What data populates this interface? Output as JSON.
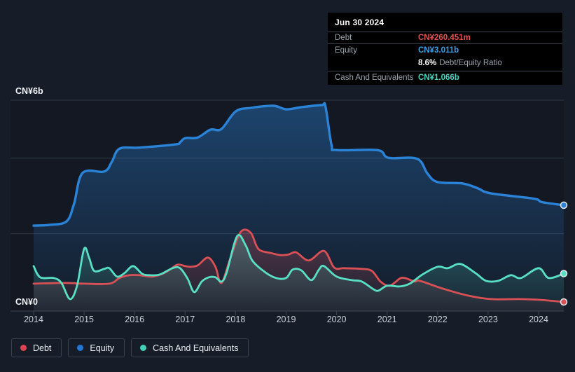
{
  "tooltip": {
    "date": "Jun 30 2024",
    "debt_label": "Debt",
    "debt_value": "CN¥260.451m",
    "equity_label": "Equity",
    "equity_value": "CN¥3.011b",
    "ratio_value": "8.6%",
    "ratio_label": "Debt/Equity Ratio",
    "cash_label": "Cash And Equivalents",
    "cash_value": "CN¥1.066b",
    "colors": {
      "debt": "#e4504b",
      "equity": "#38a1ea",
      "cash": "#46d4c0"
    }
  },
  "axis": {
    "y_max_label": "CN¥6b",
    "y_min_label": "CN¥0",
    "year_labels": [
      "2014",
      "2015",
      "2016",
      "2017",
      "2018",
      "2019",
      "2020",
      "2021",
      "2022",
      "2023",
      "2024"
    ]
  },
  "legend": {
    "items": [
      {
        "label": "Debt",
        "color": "#e0434f"
      },
      {
        "label": "Equity",
        "color": "#2079d8"
      },
      {
        "label": "Cash And Equivalents",
        "color": "#43d1b9"
      }
    ]
  },
  "chart_data": {
    "type": "area",
    "title": "Debt, Equity and Cash history",
    "x_unit": "year",
    "x_range": [
      2014,
      2024.5
    ],
    "ylim_b": [
      0,
      6
    ],
    "gridlines_b": [
      6,
      4.35,
      2.2,
      0
    ],
    "grid": true,
    "legend_position": "bottom",
    "series": [
      {
        "name": "Equity",
        "color": "#2b83d8",
        "points": [
          [
            2014.0,
            2.43
          ],
          [
            2014.3,
            2.45
          ],
          [
            2014.65,
            2.55
          ],
          [
            2014.8,
            3.05
          ],
          [
            2014.97,
            3.93
          ],
          [
            2015.4,
            3.97
          ],
          [
            2015.55,
            4.25
          ],
          [
            2015.7,
            4.62
          ],
          [
            2016.1,
            4.65
          ],
          [
            2016.8,
            4.74
          ],
          [
            2016.9,
            4.8
          ],
          [
            2017.0,
            4.92
          ],
          [
            2017.25,
            4.94
          ],
          [
            2017.5,
            5.16
          ],
          [
            2017.72,
            5.18
          ],
          [
            2018.0,
            5.68
          ],
          [
            2018.3,
            5.78
          ],
          [
            2018.75,
            5.84
          ],
          [
            2019.0,
            5.74
          ],
          [
            2019.3,
            5.8
          ],
          [
            2019.7,
            5.86
          ],
          [
            2019.78,
            5.82
          ],
          [
            2019.9,
            4.72
          ],
          [
            2020.0,
            4.58
          ],
          [
            2020.8,
            4.58
          ],
          [
            2020.97,
            4.4
          ],
          [
            2021.1,
            4.35
          ],
          [
            2021.6,
            4.33
          ],
          [
            2021.8,
            3.91
          ],
          [
            2022.0,
            3.67
          ],
          [
            2022.5,
            3.63
          ],
          [
            2022.8,
            3.49
          ],
          [
            2023.05,
            3.35
          ],
          [
            2023.9,
            3.2
          ],
          [
            2024.07,
            3.1
          ],
          [
            2024.5,
            3.011
          ]
        ]
      },
      {
        "name": "Debt",
        "color": "#d95055",
        "points": [
          [
            2014.0,
            0.78
          ],
          [
            2014.6,
            0.8
          ],
          [
            2015.0,
            0.78
          ],
          [
            2015.5,
            0.78
          ],
          [
            2015.7,
            0.94
          ],
          [
            2015.9,
            1.02
          ],
          [
            2016.1,
            1.02
          ],
          [
            2016.35,
            0.98
          ],
          [
            2016.55,
            1.06
          ],
          [
            2016.7,
            1.18
          ],
          [
            2016.85,
            1.32
          ],
          [
            2017.0,
            1.28
          ],
          [
            2017.1,
            1.26
          ],
          [
            2017.25,
            1.3
          ],
          [
            2017.45,
            1.52
          ],
          [
            2017.6,
            1.26
          ],
          [
            2017.72,
            0.8
          ],
          [
            2017.9,
            1.52
          ],
          [
            2018.1,
            2.25
          ],
          [
            2018.3,
            2.23
          ],
          [
            2018.45,
            1.77
          ],
          [
            2018.7,
            1.65
          ],
          [
            2018.9,
            1.59
          ],
          [
            2019.05,
            1.61
          ],
          [
            2019.2,
            1.67
          ],
          [
            2019.45,
            1.44
          ],
          [
            2019.75,
            1.71
          ],
          [
            2019.95,
            1.24
          ],
          [
            2020.15,
            1.22
          ],
          [
            2020.5,
            1.2
          ],
          [
            2020.7,
            1.14
          ],
          [
            2020.87,
            0.84
          ],
          [
            2021.05,
            0.72
          ],
          [
            2021.25,
            0.92
          ],
          [
            2021.35,
            0.94
          ],
          [
            2021.55,
            0.84
          ],
          [
            2021.65,
            0.86
          ],
          [
            2022.1,
            0.64
          ],
          [
            2022.6,
            0.44
          ],
          [
            2023.05,
            0.34
          ],
          [
            2023.6,
            0.34
          ],
          [
            2024.0,
            0.32
          ],
          [
            2024.5,
            0.26
          ]
        ]
      },
      {
        "name": "Cash And Equivalents",
        "color": "#58e0c5",
        "points": [
          [
            2014.0,
            1.28
          ],
          [
            2014.13,
            0.96
          ],
          [
            2014.4,
            0.94
          ],
          [
            2014.55,
            0.8
          ],
          [
            2014.72,
            0.34
          ],
          [
            2014.86,
            0.72
          ],
          [
            2015.0,
            1.77
          ],
          [
            2015.1,
            1.51
          ],
          [
            2015.2,
            1.14
          ],
          [
            2015.4,
            1.2
          ],
          [
            2015.5,
            1.22
          ],
          [
            2015.65,
            0.98
          ],
          [
            2015.8,
            1.08
          ],
          [
            2015.97,
            1.28
          ],
          [
            2016.15,
            1.06
          ],
          [
            2016.3,
            1.02
          ],
          [
            2016.5,
            1.04
          ],
          [
            2016.75,
            1.22
          ],
          [
            2016.9,
            1.22
          ],
          [
            2017.05,
            0.92
          ],
          [
            2017.18,
            0.54
          ],
          [
            2017.33,
            0.84
          ],
          [
            2017.47,
            0.96
          ],
          [
            2017.6,
            0.96
          ],
          [
            2017.72,
            0.84
          ],
          [
            2017.82,
            1.08
          ],
          [
            2018.03,
            2.13
          ],
          [
            2018.2,
            1.87
          ],
          [
            2018.33,
            1.44
          ],
          [
            2018.57,
            1.12
          ],
          [
            2018.8,
            0.94
          ],
          [
            2019.0,
            0.94
          ],
          [
            2019.13,
            1.18
          ],
          [
            2019.3,
            1.16
          ],
          [
            2019.5,
            0.88
          ],
          [
            2019.65,
            1.18
          ],
          [
            2019.75,
            1.28
          ],
          [
            2020.0,
            0.98
          ],
          [
            2020.3,
            0.88
          ],
          [
            2020.5,
            0.84
          ],
          [
            2020.73,
            0.62
          ],
          [
            2020.83,
            0.58
          ],
          [
            2021.0,
            0.72
          ],
          [
            2021.25,
            0.7
          ],
          [
            2021.45,
            0.78
          ],
          [
            2021.7,
            1.04
          ],
          [
            2022.0,
            1.26
          ],
          [
            2022.2,
            1.22
          ],
          [
            2022.45,
            1.34
          ],
          [
            2022.75,
            1.08
          ],
          [
            2022.96,
            0.86
          ],
          [
            2023.2,
            0.86
          ],
          [
            2023.45,
            1.02
          ],
          [
            2023.65,
            0.94
          ],
          [
            2024.0,
            1.22
          ],
          [
            2024.2,
            0.94
          ],
          [
            2024.5,
            1.066
          ]
        ]
      }
    ]
  }
}
